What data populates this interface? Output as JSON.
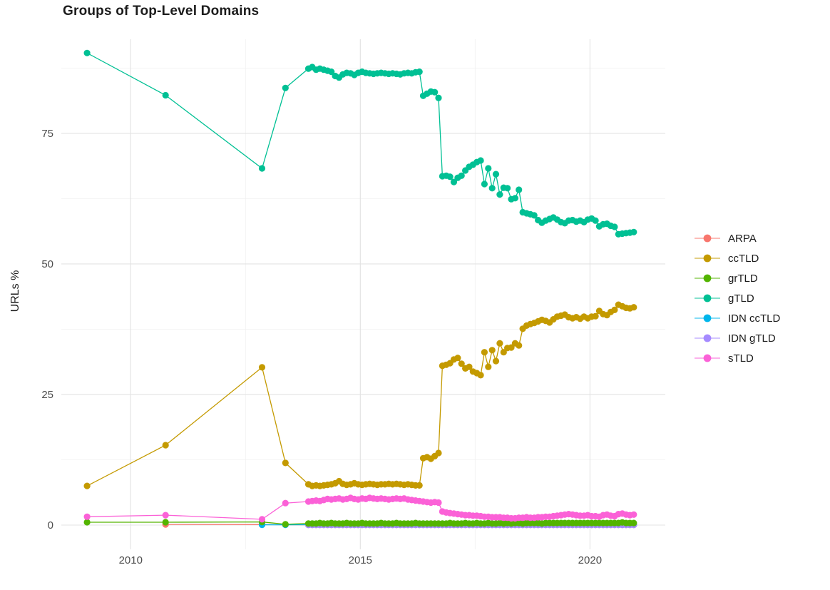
{
  "title": "Groups of Top-Level Domains",
  "y_axis_label": "URLs %",
  "chart_data": {
    "type": "line",
    "title": "Groups of Top-Level Domains",
    "xlabel": "",
    "ylabel": "URLs %",
    "xlim": [
      2008.49,
      2021.64
    ],
    "ylim": [
      -3.69,
      93.03
    ],
    "grid": {
      "on": true,
      "x_major": [
        2010,
        2015,
        2020
      ],
      "x_minor": [
        2012.5,
        2017.5
      ],
      "y_major": [
        0,
        25,
        50,
        75
      ],
      "y_minor": [
        12.5,
        37.5,
        62.5,
        87.5
      ]
    },
    "x_ticks": {
      "values": [
        2010,
        2015,
        2020
      ],
      "labels": [
        "2010",
        "2015",
        "2020"
      ]
    },
    "y_ticks": {
      "values": [
        0,
        25,
        50,
        75
      ],
      "labels": [
        "0",
        "25",
        "50",
        "75"
      ]
    },
    "legend_position": "right",
    "draw_order": [
      "ARPA",
      "IDN ccTLD",
      "IDN gTLD",
      "grTLD",
      "ccTLD",
      "gTLD",
      "sTLD"
    ],
    "monthly_start": 2013.87,
    "monthly_step": 0.08333,
    "series": [
      {
        "name": "ARPA",
        "color": "#F8766D",
        "early": [
          [
            2010.76,
            0.12
          ],
          [
            2012.86,
            0.1
          ],
          [
            2013.37,
            0.06
          ]
        ],
        "monthly": [
          0.05,
          0.05,
          0.05,
          0.05,
          0.05,
          0.05,
          0.05,
          0.05,
          0.05,
          0.05,
          0.05,
          0.05,
          0.05,
          0.05,
          0.05,
          0.05,
          0.05,
          0.05,
          0.05,
          0.05,
          0.05,
          0.05,
          0.05,
          0.05,
          0.05,
          0.05,
          0.05,
          0.05,
          0.05,
          0.05,
          0.05,
          0.05,
          0.05,
          0.05,
          0.05,
          0.05,
          0.05,
          0.05,
          0.05,
          0.05,
          0.05,
          0.05,
          0.05,
          0.05,
          0.05,
          0.05,
          0.05,
          0.05,
          0.05,
          0.05,
          0.05,
          0.05,
          0.05,
          0.05,
          0.05,
          0.05,
          0.05,
          0.05,
          0.05,
          0.05,
          0.05,
          0.05,
          0.05,
          0.05,
          0.05,
          0.05,
          0.05,
          0.05,
          0.05,
          0.05,
          0.05,
          0.05,
          0.05,
          0.05,
          0.05,
          0.05,
          0.05,
          0.05,
          0.05,
          0.05,
          0.05,
          0.05,
          0.05,
          0.05,
          0.05,
          0.05
        ]
      },
      {
        "name": "ccTLD",
        "color": "#C49A00",
        "early": [
          [
            2009.05,
            7.5
          ],
          [
            2010.76,
            15.3
          ],
          [
            2012.86,
            30.2
          ],
          [
            2013.37,
            11.9
          ]
        ],
        "monthly": [
          7.8,
          7.5,
          7.6,
          7.5,
          7.6,
          7.7,
          7.8,
          8.0,
          8.4,
          7.9,
          7.7,
          7.8,
          8.0,
          7.8,
          7.7,
          7.8,
          7.9,
          7.8,
          7.7,
          7.8,
          7.8,
          7.9,
          7.8,
          7.9,
          7.8,
          7.7,
          7.8,
          7.7,
          7.6,
          7.6,
          12.8,
          13.0,
          12.7,
          13.2,
          13.8,
          30.5,
          30.7,
          31.0,
          31.7,
          32.0,
          30.9,
          30.0,
          30.3,
          29.4,
          29.1,
          28.7,
          33.1,
          30.3,
          33.5,
          31.4,
          34.8,
          33.1,
          33.9,
          34.0,
          34.8,
          34.4,
          37.6,
          38.2,
          38.5,
          38.7,
          39.0,
          39.3,
          39.1,
          38.8,
          39.4,
          39.9,
          40.1,
          40.3,
          39.8,
          39.6,
          39.8,
          39.5,
          39.9,
          39.6,
          39.9,
          40.0,
          41.0,
          40.4,
          40.2,
          40.8,
          41.2,
          42.2,
          41.9,
          41.6,
          41.5,
          41.7
        ]
      },
      {
        "name": "grTLD",
        "color": "#53B400",
        "early": [
          [
            2009.05,
            0.55
          ],
          [
            2010.76,
            0.55
          ],
          [
            2012.86,
            0.6
          ],
          [
            2013.37,
            0.15
          ]
        ],
        "monthly": [
          0.3,
          0.3,
          0.3,
          0.4,
          0.3,
          0.3,
          0.4,
          0.3,
          0.3,
          0.3,
          0.4,
          0.3,
          0.3,
          0.3,
          0.4,
          0.3,
          0.3,
          0.3,
          0.3,
          0.4,
          0.3,
          0.3,
          0.3,
          0.4,
          0.3,
          0.3,
          0.3,
          0.3,
          0.4,
          0.3,
          0.3,
          0.3,
          0.3,
          0.3,
          0.3,
          0.3,
          0.3,
          0.4,
          0.3,
          0.3,
          0.3,
          0.4,
          0.3,
          0.3,
          0.4,
          0.3,
          0.3,
          0.4,
          0.3,
          0.3,
          0.4,
          0.3,
          0.4,
          0.3,
          0.4,
          0.4,
          0.3,
          0.4,
          0.4,
          0.4,
          0.4,
          0.3,
          0.4,
          0.4,
          0.4,
          0.4,
          0.4,
          0.4,
          0.4,
          0.4,
          0.4,
          0.4,
          0.4,
          0.4,
          0.4,
          0.4,
          0.4,
          0.4,
          0.4,
          0.4,
          0.4,
          0.4,
          0.5,
          0.4,
          0.4,
          0.4
        ]
      },
      {
        "name": "gTLD",
        "color": "#00C094",
        "early": [
          [
            2009.05,
            90.4
          ],
          [
            2010.76,
            82.3
          ],
          [
            2012.86,
            68.3
          ],
          [
            2013.37,
            83.7
          ]
        ],
        "monthly": [
          87.4,
          87.7,
          87.2,
          87.4,
          87.2,
          87.0,
          86.8,
          86.0,
          85.7,
          86.3,
          86.6,
          86.5,
          86.2,
          86.6,
          86.8,
          86.6,
          86.5,
          86.4,
          86.5,
          86.6,
          86.5,
          86.4,
          86.5,
          86.4,
          86.3,
          86.5,
          86.6,
          86.5,
          86.7,
          86.8,
          82.2,
          82.6,
          83.0,
          82.9,
          81.8,
          66.8,
          66.9,
          66.7,
          65.7,
          66.5,
          66.9,
          67.9,
          68.6,
          69.0,
          69.5,
          69.8,
          65.3,
          68.3,
          64.5,
          67.2,
          63.3,
          64.6,
          64.5,
          62.4,
          62.6,
          64.2,
          59.9,
          59.7,
          59.5,
          59.3,
          58.4,
          57.9,
          58.3,
          58.6,
          58.9,
          58.5,
          58.0,
          57.8,
          58.3,
          58.4,
          58.1,
          58.3,
          58.0,
          58.5,
          58.7,
          58.3,
          57.2,
          57.6,
          57.7,
          57.3,
          57.1,
          55.7,
          55.8,
          55.9,
          56.0,
          56.1
        ]
      },
      {
        "name": "IDN ccTLD",
        "color": "#00B6EB",
        "early": [
          [
            2012.86,
            0.05
          ],
          [
            2013.37,
            0.05
          ]
        ],
        "monthly": [
          0.07,
          0.07,
          0.07,
          0.07,
          0.07,
          0.07,
          0.07,
          0.07,
          0.07,
          0.07,
          0.07,
          0.07,
          0.07,
          0.07,
          0.07,
          0.07,
          0.07,
          0.07,
          0.07,
          0.07,
          0.07,
          0.07,
          0.07,
          0.07,
          0.07,
          0.07,
          0.07,
          0.07,
          0.07,
          0.07,
          0.07,
          0.07,
          0.07,
          0.07,
          0.07,
          0.07,
          0.07,
          0.07,
          0.07,
          0.07,
          0.07,
          0.07,
          0.07,
          0.07,
          0.07,
          0.07,
          0.07,
          0.07,
          0.07,
          0.07,
          0.07,
          0.07,
          0.07,
          0.07,
          0.07,
          0.07,
          0.07,
          0.07,
          0.07,
          0.07,
          0.07,
          0.07,
          0.07,
          0.07,
          0.07,
          0.07,
          0.07,
          0.07,
          0.07,
          0.07,
          0.07,
          0.07,
          0.07,
          0.07,
          0.07,
          0.07,
          0.07,
          0.07,
          0.07,
          0.07,
          0.07,
          0.07,
          0.07,
          0.07,
          0.07,
          0.07
        ]
      },
      {
        "name": "IDN gTLD",
        "color": "#A58AFF",
        "early": [],
        "monthly": [
          0.04,
          0.04,
          0.04,
          0.04,
          0.04,
          0.04,
          0.04,
          0.04,
          0.04,
          0.04,
          0.04,
          0.04,
          0.04,
          0.04,
          0.04,
          0.04,
          0.04,
          0.04,
          0.04,
          0.04,
          0.04,
          0.04,
          0.04,
          0.04,
          0.04,
          0.04,
          0.04,
          0.04,
          0.04,
          0.04,
          0.04,
          0.04,
          0.04,
          0.04,
          0.04,
          0.04,
          0.04,
          0.04,
          0.04,
          0.04,
          0.04,
          0.04,
          0.04,
          0.04,
          0.04,
          0.04,
          0.04,
          0.04,
          0.04,
          0.04,
          0.04,
          0.04,
          0.04,
          0.04,
          0.04,
          0.04,
          0.04,
          0.04,
          0.04,
          0.04,
          0.04,
          0.04,
          0.04,
          0.04,
          0.04,
          0.04,
          0.04,
          0.04,
          0.04,
          0.04,
          0.04,
          0.04,
          0.04,
          0.04,
          0.04,
          0.04,
          0.04,
          0.04,
          0.04,
          0.04,
          0.04,
          0.04,
          0.04,
          0.04,
          0.04,
          0.04
        ]
      },
      {
        "name": "sTLD",
        "color": "#FB61D7",
        "early": [
          [
            2009.05,
            1.6
          ],
          [
            2010.76,
            1.9
          ],
          [
            2012.86,
            1.1
          ],
          [
            2013.37,
            4.2
          ]
        ],
        "monthly": [
          4.5,
          4.6,
          4.7,
          4.6,
          4.8,
          5.0,
          4.9,
          5.0,
          5.1,
          4.9,
          5.0,
          5.2,
          5.0,
          4.9,
          5.1,
          5.0,
          5.2,
          5.1,
          5.0,
          5.1,
          5.0,
          4.9,
          5.0,
          5.1,
          5.0,
          5.1,
          4.9,
          4.8,
          4.7,
          4.6,
          4.5,
          4.4,
          4.3,
          4.4,
          4.3,
          2.6,
          2.4,
          2.3,
          2.2,
          2.1,
          2.0,
          1.9,
          1.9,
          1.8,
          1.8,
          1.7,
          1.6,
          1.6,
          1.5,
          1.5,
          1.5,
          1.4,
          1.4,
          1.3,
          1.3,
          1.4,
          1.4,
          1.5,
          1.4,
          1.4,
          1.5,
          1.5,
          1.6,
          1.6,
          1.7,
          1.8,
          1.9,
          2.0,
          2.1,
          2.0,
          1.9,
          1.8,
          1.8,
          1.9,
          1.7,
          1.7,
          1.6,
          1.9,
          2.0,
          1.8,
          1.7,
          2.1,
          2.2,
          2.0,
          1.9,
          2.0
        ]
      }
    ]
  }
}
